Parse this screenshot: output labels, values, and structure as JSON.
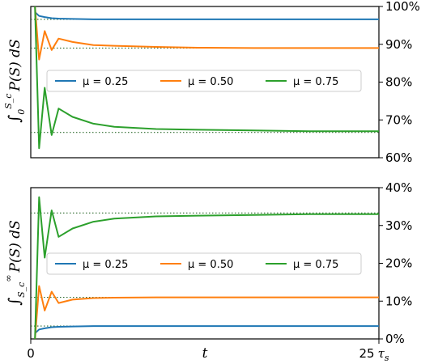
{
  "chart_data": [
    {
      "type": "line",
      "ylabel": "∫₀^{S_c} P(S) dS",
      "ylabel_main": "∫",
      "ylabel_lower": "0",
      "ylabel_upper": "S_c",
      "ylabel_tail": "P(S) dS",
      "y_axis_side": "right",
      "ylim": [
        60,
        100
      ],
      "yticks": [
        60,
        70,
        80,
        90,
        100
      ],
      "ytick_labels": [
        "60%",
        "70%",
        "80%",
        "90%",
        "100%"
      ],
      "xlim": [
        0,
        25
      ],
      "legend_placement": "center",
      "series": [
        {
          "name": "μ = 0.25",
          "color": "#1f77b4",
          "x": [
            0.3,
            0.6,
            1.0,
            1.5,
            2.0,
            3.0,
            4.5,
            6.0,
            9.0,
            12.0,
            16.0,
            20.0,
            25.0
          ],
          "y": [
            98.5,
            97.5,
            97.2,
            96.9,
            96.8,
            96.7,
            96.6,
            96.6,
            96.6,
            96.6,
            96.6,
            96.6,
            96.6
          ]
        },
        {
          "name": "μ = 0.50",
          "color": "#ff7f0e",
          "x": [
            0.3,
            0.6,
            1.0,
            1.5,
            2.0,
            3.0,
            4.5,
            6.0,
            9.0,
            12.0,
            16.0,
            20.0,
            25.0
          ],
          "y": [
            100.0,
            86.0,
            93.5,
            88.5,
            91.5,
            90.6,
            89.8,
            89.6,
            89.3,
            89.1,
            89.0,
            89.0,
            89.0
          ]
        },
        {
          "name": "μ = 0.75",
          "color": "#2ca02c",
          "x": [
            0.3,
            0.6,
            1.0,
            1.5,
            2.0,
            3.0,
            4.5,
            6.0,
            9.0,
            12.0,
            16.0,
            20.0,
            25.0
          ],
          "y": [
            100.0,
            62.5,
            78.5,
            66.0,
            73.0,
            70.8,
            69.0,
            68.2,
            67.6,
            67.4,
            67.2,
            67.0,
            67.0
          ]
        }
      ],
      "reference_lines": [
        96.6,
        89.0,
        66.7
      ]
    },
    {
      "type": "line",
      "ylabel": "∫_{S_c}^{∞} P(S) dS",
      "ylabel_main": "∫",
      "ylabel_lower": "S_c",
      "ylabel_upper": "∞",
      "ylabel_tail": "P(S) dS",
      "xlabel": "t",
      "y_axis_side": "right",
      "ylim": [
        0,
        40
      ],
      "yticks": [
        0,
        10,
        20,
        30,
        40
      ],
      "ytick_labels": [
        "0%",
        "10%",
        "20%",
        "30%",
        "40%"
      ],
      "xlim": [
        0,
        25
      ],
      "xtick_labels": [
        "0",
        "25 τ_s"
      ],
      "xtick_left": "0",
      "xtick_right_num": "25",
      "xtick_right_unit": "τ",
      "xtick_right_sub": "s",
      "legend_placement": "center",
      "series": [
        {
          "name": "μ = 0.25",
          "color": "#1f77b4",
          "x": [
            0.3,
            0.6,
            1.0,
            1.5,
            2.0,
            3.0,
            4.5,
            6.0,
            9.0,
            12.0,
            16.0,
            20.0,
            25.0
          ],
          "y": [
            1.5,
            2.5,
            2.8,
            3.1,
            3.2,
            3.3,
            3.4,
            3.4,
            3.4,
            3.4,
            3.4,
            3.4,
            3.4
          ]
        },
        {
          "name": "μ = 0.50",
          "color": "#ff7f0e",
          "x": [
            0.3,
            0.6,
            1.0,
            1.5,
            2.0,
            3.0,
            4.5,
            6.0,
            9.0,
            12.0,
            16.0,
            20.0,
            25.0
          ],
          "y": [
            0.0,
            14.0,
            7.5,
            12.5,
            9.5,
            10.4,
            10.8,
            10.9,
            11.0,
            11.0,
            11.0,
            11.0,
            11.0
          ]
        },
        {
          "name": "μ = 0.75",
          "color": "#2ca02c",
          "x": [
            0.3,
            0.6,
            1.0,
            1.5,
            2.0,
            3.0,
            4.5,
            6.0,
            9.0,
            12.0,
            16.0,
            20.0,
            25.0
          ],
          "y": [
            0.0,
            37.5,
            21.5,
            34.0,
            27.0,
            29.2,
            31.0,
            31.8,
            32.4,
            32.6,
            32.8,
            33.0,
            33.0
          ]
        }
      ],
      "reference_lines": [
        3.4,
        11.0,
        33.3
      ]
    }
  ]
}
